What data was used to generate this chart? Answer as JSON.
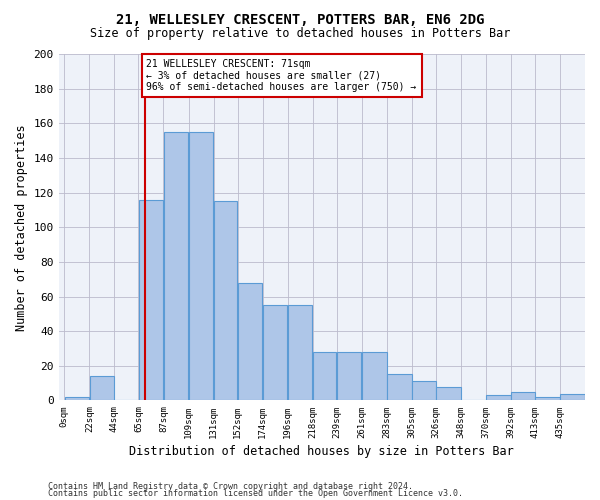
{
  "title": "21, WELLESLEY CRESCENT, POTTERS BAR, EN6 2DG",
  "subtitle": "Size of property relative to detached houses in Potters Bar",
  "xlabel": "Distribution of detached houses by size in Potters Bar",
  "ylabel": "Number of detached properties",
  "bin_labels": [
    "0sqm",
    "22sqm",
    "44sqm",
    "65sqm",
    "87sqm",
    "109sqm",
    "131sqm",
    "152sqm",
    "174sqm",
    "196sqm",
    "218sqm",
    "239sqm",
    "261sqm",
    "283sqm",
    "305sqm",
    "326sqm",
    "348sqm",
    "370sqm",
    "392sqm",
    "413sqm",
    "435sqm"
  ],
  "bar_heights": [
    2,
    14,
    0,
    116,
    155,
    155,
    115,
    68,
    55,
    55,
    28,
    28,
    28,
    15,
    11,
    8,
    0,
    3,
    5,
    2,
    4
  ],
  "bar_color": "#aec6e8",
  "bar_edge_color": "#5b9bd5",
  "ylim": [
    0,
    200
  ],
  "yticks": [
    0,
    20,
    40,
    60,
    80,
    100,
    120,
    140,
    160,
    180,
    200
  ],
  "property_line_x": 71,
  "property_line_label": "21 WELLESLEY CRESCENT: 71sqm",
  "annotation_line1": "← 3% of detached houses are smaller (27)",
  "annotation_line2": "96% of semi-detached houses are larger (750) →",
  "box_color": "#cc0000",
  "footer_line1": "Contains HM Land Registry data © Crown copyright and database right 2024.",
  "footer_line2": "Contains public sector information licensed under the Open Government Licence v3.0.",
  "background_color": "#eef2f9"
}
